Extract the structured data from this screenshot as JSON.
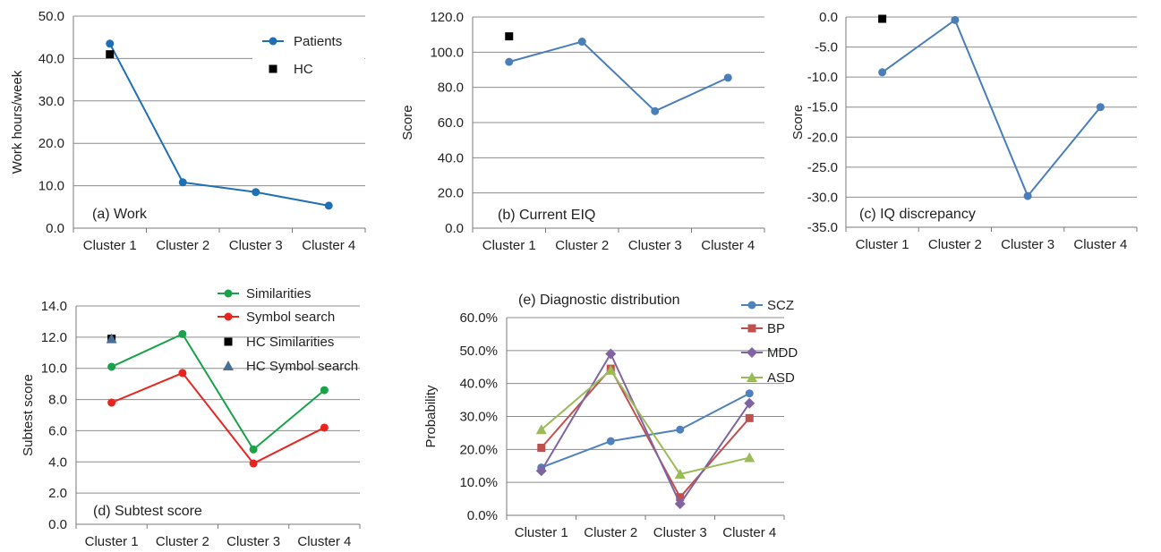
{
  "chart_data": [
    {
      "id": "work",
      "type": "line",
      "title": "(a)  Work",
      "ylabel": "Work hours/week",
      "categories": [
        "Cluster 1",
        "Cluster 2",
        "Cluster 3",
        "Cluster 4"
      ],
      "ylim": [
        0,
        50
      ],
      "yticks": [
        "0.0",
        "10.0",
        "20.0",
        "30.0",
        "40.0",
        "50.0"
      ],
      "series": [
        {
          "name": "Patients",
          "values": [
            43.5,
            10.8,
            8.5,
            5.3
          ],
          "color": "#1f6fb5",
          "marker": "circle",
          "line": true
        },
        {
          "name": "HC",
          "values": [
            41.0,
            null,
            null,
            null
          ],
          "color": "#000000",
          "marker": "square",
          "line": false
        }
      ],
      "legend_position": "top-right"
    },
    {
      "id": "eiq",
      "type": "line",
      "title": "(b)  Current EIQ",
      "ylabel": "Score",
      "categories": [
        "Cluster 1",
        "Cluster 2",
        "Cluster 3",
        "Cluster 4"
      ],
      "ylim": [
        0,
        120
      ],
      "yticks": [
        "0.0",
        "20.0",
        "40.0",
        "60.0",
        "80.0",
        "100.0",
        "120.0"
      ],
      "series": [
        {
          "values": [
            94.5,
            106.0,
            66.5,
            85.5
          ],
          "color": "#4a7ebb",
          "marker": "circle",
          "line": true
        },
        {
          "values": [
            109.0,
            null,
            null,
            null
          ],
          "color": "#000000",
          "marker": "square",
          "line": false
        }
      ]
    },
    {
      "id": "iqdisc",
      "type": "line",
      "title": "(c)  IQ discrepancy",
      "ylabel": "Score",
      "categories": [
        "Cluster 1",
        "Cluster 2",
        "Cluster 3",
        "Cluster 4"
      ],
      "ylim": [
        -35,
        0
      ],
      "yticks": [
        "-35.0",
        "-30.0",
        "-25.0",
        "-20.0",
        "-15.0",
        "-10.0",
        "-5.0",
        "0.0"
      ],
      "series": [
        {
          "values": [
            -9.2,
            -0.5,
            -29.8,
            -15.0
          ],
          "color": "#4a7ebb",
          "marker": "circle",
          "line": true
        },
        {
          "values": [
            -0.3,
            null,
            null,
            null
          ],
          "color": "#000000",
          "marker": "square",
          "line": false
        }
      ]
    },
    {
      "id": "subtest",
      "type": "line",
      "title": "(d)  Subtest score",
      "ylabel": "Subtest score",
      "categories": [
        "Cluster 1",
        "Cluster 2",
        "Cluster 3",
        "Cluster 4"
      ],
      "ylim": [
        0,
        14
      ],
      "yticks": [
        "0.0",
        "2.0",
        "4.0",
        "6.0",
        "8.0",
        "10.0",
        "12.0",
        "14.0"
      ],
      "series": [
        {
          "name": "Similarities",
          "values": [
            10.1,
            12.2,
            4.8,
            8.6
          ],
          "color": "#19a24a",
          "marker": "circle",
          "line": true
        },
        {
          "name": "Symbol search",
          "values": [
            7.8,
            9.7,
            3.9,
            6.2
          ],
          "color": "#e8241e",
          "marker": "circle",
          "line": true
        },
        {
          "name": "HC Similarities",
          "values": [
            11.9,
            null,
            null,
            null
          ],
          "color": "#000000",
          "marker": "square",
          "line": false
        },
        {
          "name": "HC Symbol search",
          "values": [
            11.9,
            null,
            null,
            null
          ],
          "color": "#4a6f95",
          "marker": "triangle",
          "line": false
        }
      ],
      "legend_position": "top-right (outside)"
    },
    {
      "id": "diag",
      "type": "line",
      "title": "(e)  Diagnostic distribution",
      "ylabel": "Probability",
      "categories": [
        "Cluster 1",
        "Cluster 2",
        "Cluster 3",
        "Cluster 4"
      ],
      "ylim": [
        0,
        0.6
      ],
      "yticks": [
        "0.0%",
        "10.0%",
        "20.0%",
        "30.0%",
        "40.0%",
        "50.0%",
        "60.0%"
      ],
      "series": [
        {
          "name": "SCZ",
          "values": [
            0.145,
            0.225,
            0.26,
            0.37
          ],
          "color": "#4f81bd",
          "marker": "circle",
          "line": true
        },
        {
          "name": "BP",
          "values": [
            0.205,
            0.445,
            0.055,
            0.295
          ],
          "color": "#c0504d",
          "marker": "square",
          "line": true
        },
        {
          "name": "MDD",
          "values": [
            0.135,
            0.49,
            0.035,
            0.34
          ],
          "color": "#8064a2",
          "marker": "diamond",
          "line": true
        },
        {
          "name": "ASD",
          "values": [
            0.26,
            0.44,
            0.125,
            0.175
          ],
          "color": "#9bbb59",
          "marker": "triangle",
          "line": true
        }
      ],
      "legend_position": "right"
    }
  ]
}
